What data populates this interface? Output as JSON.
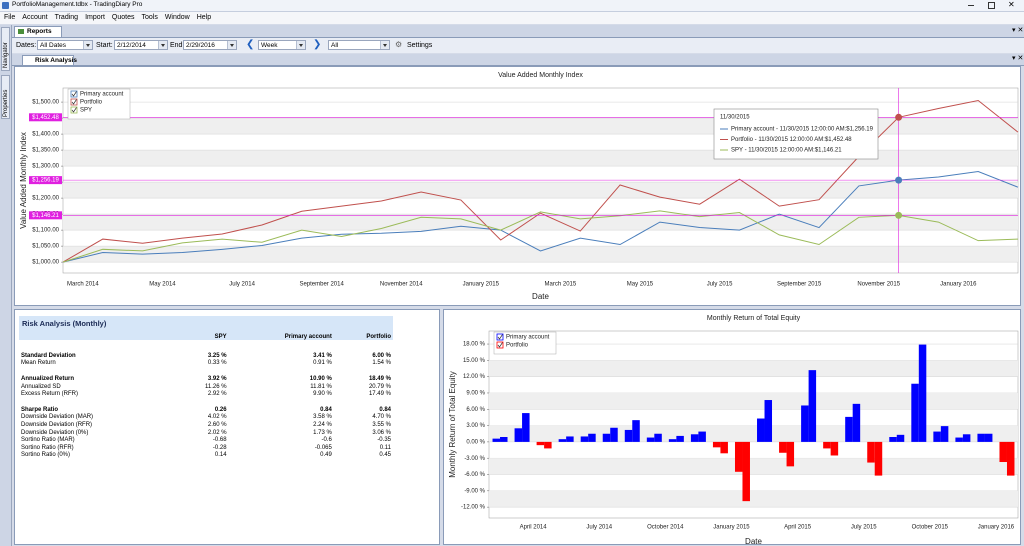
{
  "window": {
    "title": "PortfolioManagement.tdbx - TradingDiary Pro"
  },
  "menu": [
    "File",
    "Account",
    "Trading",
    "Import",
    "Quotes",
    "Tools",
    "Window",
    "Help"
  ],
  "tab": "Reports",
  "toolbar": {
    "dates_label": "Dates:",
    "dates": "All Dates",
    "start_label": "Start:",
    "start": "2/12/2014",
    "end_label": "End:",
    "end": "2/29/2016",
    "period": "Week",
    "filter": "All",
    "settings": "Settings"
  },
  "side_tabs": [
    "Navigator",
    "Properties"
  ],
  "sub_tab": "Risk Analysis",
  "table": {
    "title": "Risk Analysis (Monthly)",
    "columns": [
      "SPY",
      "Primary account",
      "Portfolio"
    ],
    "sections": [
      {
        "header": [
          "Standard Deviation",
          "3.25 %",
          "3.41 %",
          "6.00 %"
        ],
        "rows": [
          [
            "Mean Return",
            "0.33 %",
            "0.91 %",
            "1.54 %"
          ]
        ]
      },
      {
        "header": [
          "Annualized Return",
          "3.92 %",
          "10.90 %",
          "18.49 %"
        ],
        "rows": [
          [
            "Annualized SD",
            "11.26 %",
            "11.81 %",
            "20.79 %"
          ],
          [
            "Excess Return (RFR)",
            "2.92 %",
            "9.90 %",
            "17.49 %"
          ]
        ]
      },
      {
        "header": [
          "Sharpe Ratio",
          "0.26",
          "0.84",
          "0.84"
        ],
        "rows": [
          [
            "Downside Deviation (MAR)",
            "4.02 %",
            "3.58 %",
            "4.70 %"
          ],
          [
            "Downside Deviation (RFR)",
            "2.60 %",
            "2.24 %",
            "3.55 %"
          ],
          [
            "Downside Deviation (0%)",
            "2.02 %",
            "1.73 %",
            "3.06 %"
          ],
          [
            "Sortino Ratio (MAR)",
            "-0.68",
            "-0.6",
            "-0.35"
          ],
          [
            "Sortino Ratio (RFR)",
            "-0.28",
            "-0.065",
            "0.11"
          ],
          [
            "Sortino Ratio (0%)",
            "0.14",
            "0.49",
            "0.45"
          ]
        ]
      }
    ]
  },
  "chart_data": [
    {
      "type": "line",
      "title": "Value Added Monthly Index",
      "ylabel": "Value Added Monthly Index",
      "xlabel": "Date",
      "categories": [
        null,
        "March 2014",
        null,
        "May 2014",
        null,
        "July 2014",
        null,
        "September 2014",
        null,
        "November 2014",
        null,
        "January 2015",
        null,
        "March 2015",
        null,
        "May 2015",
        null,
        "July 2015",
        null,
        "September 2015",
        null,
        "November 2015",
        null,
        "January 2016",
        null
      ],
      "series": [
        {
          "name": "Primary account",
          "color": "#4a7ebb",
          "values": [
            1000,
            1030,
            1025,
            1030,
            1040,
            1052,
            1075,
            1087,
            1090,
            1096,
            1112,
            1100,
            1035,
            1075,
            1055,
            1125,
            1108,
            1100,
            1150,
            1108,
            1238,
            1256.19,
            1266,
            1283,
            1234
          ]
        },
        {
          "name": "Portfolio",
          "color": "#c0504d",
          "values": [
            1000,
            1072,
            1059,
            1075,
            1088,
            1116,
            1159,
            1175,
            1191,
            1219,
            1194,
            1069,
            1153,
            1097,
            1241,
            1203,
            1181,
            1259,
            1175,
            1195,
            1330,
            1452.48,
            1480,
            1505,
            1406
          ]
        },
        {
          "name": "SPY",
          "color": "#9bbb59",
          "values": [
            1000,
            1040,
            1035,
            1060,
            1072,
            1062,
            1100,
            1080,
            1105,
            1140,
            1135,
            1100,
            1157,
            1135,
            1145,
            1160,
            1142,
            1155,
            1085,
            1055,
            1140,
            1146.21,
            1125,
            1067,
            1072
          ]
        }
      ],
      "ylim": [
        966,
        1544
      ],
      "yticks": [
        {
          "value": 1000,
          "label": "$1,000.00"
        },
        {
          "value": 1050,
          "label": "$1,050.00"
        },
        {
          "value": 1100,
          "label": "$1,100.00"
        },
        {
          "value": 1150,
          "label": "$1,150.00"
        },
        {
          "value": 1200,
          "label": "$1,200.00"
        },
        {
          "value": 1250,
          "label": "$1,250.00"
        },
        {
          "value": 1300,
          "label": "$1,300.00"
        },
        {
          "value": 1350,
          "label": "$1,350.00"
        },
        {
          "value": 1400,
          "label": "$1,400.00"
        },
        {
          "value": 1450,
          "label": "$1,450.00"
        },
        {
          "value": 1500,
          "label": "$1,500.00"
        }
      ],
      "grid": true,
      "legend": "top-left",
      "crosshair": {
        "index": 21,
        "color": "#e020e0",
        "labels": [
          "$1,256.19",
          "$1,452.48",
          "$1,146.21"
        ]
      },
      "tooltip": {
        "title": "11/30/2015",
        "lines": [
          "Primary account - 11/30/2015 12:00:00 AM:$1,256.19",
          "Portfolio - 11/30/2015 12:00:00 AM:$1,452.48",
          "SPY - 11/30/2015 12:00:00 AM:$1,146.21"
        ]
      }
    },
    {
      "type": "bar",
      "title": "Monthly Return of Total Equity",
      "ylabel": "Monthly Return of Total Equity",
      "xlabel": "Date",
      "categories": [
        null,
        null,
        "April 2014",
        null,
        null,
        "July 2014",
        null,
        null,
        "October 2014",
        null,
        null,
        "January 2015",
        null,
        null,
        "April 2015",
        null,
        null,
        "July 2015",
        null,
        null,
        "October 2015",
        null,
        null,
        "January 2016"
      ],
      "series": [
        {
          "name": "Primary account",
          "color": "#0000ff",
          "values": [
            0.6,
            2.5,
            -0.6,
            0.5,
            1.0,
            1.5,
            2.2,
            0.8,
            0.5,
            1.4,
            -1.0,
            -5.5,
            4.3,
            -2.0,
            6.7,
            -1.2,
            4.6,
            -3.8,
            0.9,
            10.7,
            1.9,
            0.8,
            1.5,
            -3.7
          ]
        },
        {
          "name": "Portfolio",
          "color": "#ff0000",
          "values": [
            0.9,
            5.3,
            -1.2,
            1.0,
            1.5,
            2.6,
            4.0,
            1.5,
            1.1,
            1.9,
            -2.1,
            -10.9,
            7.7,
            -4.5,
            13.2,
            -2.5,
            7.0,
            -6.2,
            1.3,
            17.9,
            2.9,
            1.4,
            1.5,
            -6.2
          ]
        }
      ],
      "positive_color": "#0000ff",
      "negative_color": "#ff0000",
      "ylim": [
        -14,
        20.4
      ],
      "yticks": [
        {
          "value": 18,
          "label": "18.00 %"
        },
        {
          "value": 15,
          "label": "15.00 %"
        },
        {
          "value": 12,
          "label": "12.00 %"
        },
        {
          "value": 9,
          "label": "9.00 %"
        },
        {
          "value": 6,
          "label": "6.00 %"
        },
        {
          "value": 3,
          "label": "3.00 %"
        },
        {
          "value": 0,
          "label": "0.00 %"
        },
        {
          "value": -3,
          "label": "-3.00 %"
        },
        {
          "value": -6,
          "label": "-6.00 %"
        },
        {
          "value": -9,
          "label": "-9.00 %"
        },
        {
          "value": -12,
          "label": "-12.00 %"
        }
      ],
      "grid": true,
      "legend": "top-left"
    }
  ]
}
